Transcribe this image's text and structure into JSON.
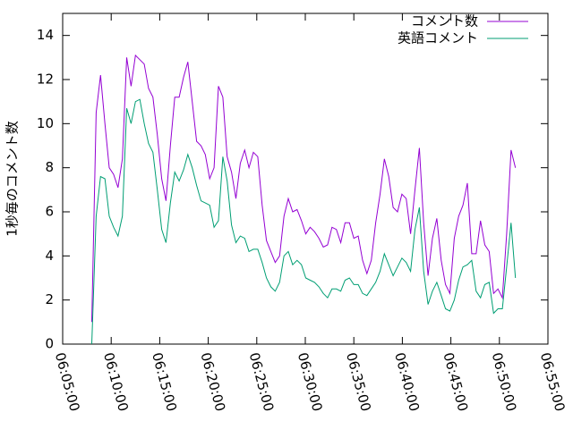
{
  "chart_data": {
    "type": "line",
    "y_label": "1秒毎のコメント数",
    "x": [
      "06:08:00",
      "06:08:27",
      "06:08:54",
      "06:09:21",
      "06:09:48",
      "06:10:15",
      "06:10:42",
      "06:11:09",
      "06:11:36",
      "06:12:03",
      "06:12:30",
      "06:12:57",
      "06:13:24",
      "06:13:51",
      "06:14:18",
      "06:14:45",
      "06:15:12",
      "06:15:39",
      "06:16:06",
      "06:16:33",
      "06:17:00",
      "06:17:27",
      "06:17:54",
      "06:18:21",
      "06:18:48",
      "06:19:15",
      "06:19:42",
      "06:20:09",
      "06:20:36",
      "06:21:03",
      "06:21:30",
      "06:21:57",
      "06:22:24",
      "06:22:51",
      "06:23:18",
      "06:23:45",
      "06:24:12",
      "06:24:39",
      "06:25:06",
      "06:25:33",
      "06:26:00",
      "06:26:27",
      "06:26:54",
      "06:27:21",
      "06:27:48",
      "06:28:15",
      "06:28:42",
      "06:29:09",
      "06:29:36",
      "06:30:03",
      "06:30:30",
      "06:30:57",
      "06:31:24",
      "06:31:51",
      "06:32:18",
      "06:32:45",
      "06:33:12",
      "06:33:39",
      "06:34:06",
      "06:34:33",
      "06:35:00",
      "06:35:27",
      "06:35:54",
      "06:36:21",
      "06:36:48",
      "06:37:15",
      "06:37:42",
      "06:38:09",
      "06:38:36",
      "06:39:03",
      "06:39:30",
      "06:39:57",
      "06:40:24",
      "06:40:51",
      "06:41:18",
      "06:41:45",
      "06:42:12",
      "06:42:39",
      "06:43:06",
      "06:43:33",
      "06:44:00",
      "06:44:27",
      "06:44:54",
      "06:45:21",
      "06:45:48",
      "06:46:15",
      "06:46:42",
      "06:47:09",
      "06:47:36",
      "06:48:03",
      "06:48:30",
      "06:48:57",
      "06:49:24",
      "06:49:51",
      "06:50:18",
      "06:50:45",
      "06:51:12",
      "06:51:39"
    ],
    "series": [
      {
        "name": "コメント数",
        "color": "#9400d3",
        "values": [
          1.0,
          10.5,
          12.2,
          10,
          8,
          7.7,
          7.1,
          8.4,
          13,
          11.7,
          13.1,
          12.9,
          12.7,
          11.6,
          11.2,
          9.5,
          7.5,
          6.5,
          9,
          11.2,
          11.2,
          12.1,
          12.8,
          11,
          9.2,
          9,
          8.6,
          7.5,
          8,
          11.7,
          11.2,
          8.5,
          7.8,
          6.6,
          8.2,
          8.8,
          8,
          8.7,
          8.5,
          6.3,
          4.7,
          4.2,
          3.7,
          4,
          5.8,
          6.6,
          6,
          6.1,
          5.6,
          5,
          5.3,
          5.1,
          4.8,
          4.4,
          4.5,
          5.3,
          5.2,
          4.6,
          5.5,
          5.5,
          4.8,
          4.9,
          3.8,
          3.2,
          3.8,
          5.5,
          6.8,
          8.4,
          7.6,
          6.2,
          6,
          6.8,
          6.6,
          5,
          7,
          8.9,
          5.5,
          3.1,
          4.8,
          5.7,
          3.8,
          2.7,
          2.3,
          4.8,
          5.8,
          6.3,
          7.3,
          4.1,
          4.1,
          5.6,
          4.5,
          4.2,
          2.3,
          2.5,
          2.1,
          5,
          8.8,
          8
        ]
      },
      {
        "name": "英語コメント",
        "color": "#009e73",
        "values": [
          0,
          5.8,
          7.6,
          7.5,
          5.8,
          5.3,
          4.9,
          5.8,
          10.7,
          10,
          11,
          11.1,
          10,
          9.1,
          8.7,
          7,
          5.2,
          4.6,
          6.4,
          7.8,
          7.4,
          7.9,
          8.6,
          8,
          7.2,
          6.5,
          6.4,
          6.3,
          5.3,
          5.6,
          8.5,
          7.4,
          5.4,
          4.6,
          4.9,
          4.8,
          4.2,
          4.3,
          4.3,
          3.7,
          3,
          2.6,
          2.4,
          2.8,
          4,
          4.2,
          3.6,
          3.8,
          3.6,
          3,
          2.9,
          2.8,
          2.6,
          2.3,
          2.1,
          2.5,
          2.5,
          2.4,
          2.9,
          3,
          2.7,
          2.7,
          2.3,
          2.2,
          2.5,
          2.8,
          3.3,
          4.1,
          3.6,
          3.1,
          3.5,
          3.9,
          3.7,
          3.3,
          5.2,
          6.2,
          3.3,
          1.8,
          2.4,
          2.8,
          2.2,
          1.6,
          1.5,
          2,
          2.9,
          3.5,
          3.6,
          3.8,
          2.4,
          2.1,
          2.7,
          2.8,
          1.4,
          1.6,
          1.6,
          3.5,
          5.5,
          3
        ]
      }
    ],
    "xlim": [
      "06:05:00",
      "06:55:00"
    ],
    "xticks": [
      "06:05:00",
      "06:10:00",
      "06:15:00",
      "06:20:00",
      "06:25:00",
      "06:30:00",
      "06:35:00",
      "06:40:00",
      "06:45:00",
      "06:50:00",
      "06:55:00"
    ],
    "ylim": [
      0,
      15
    ],
    "yticks": [
      0,
      2,
      4,
      6,
      8,
      10,
      12,
      14
    ],
    "legend": "top-right"
  }
}
